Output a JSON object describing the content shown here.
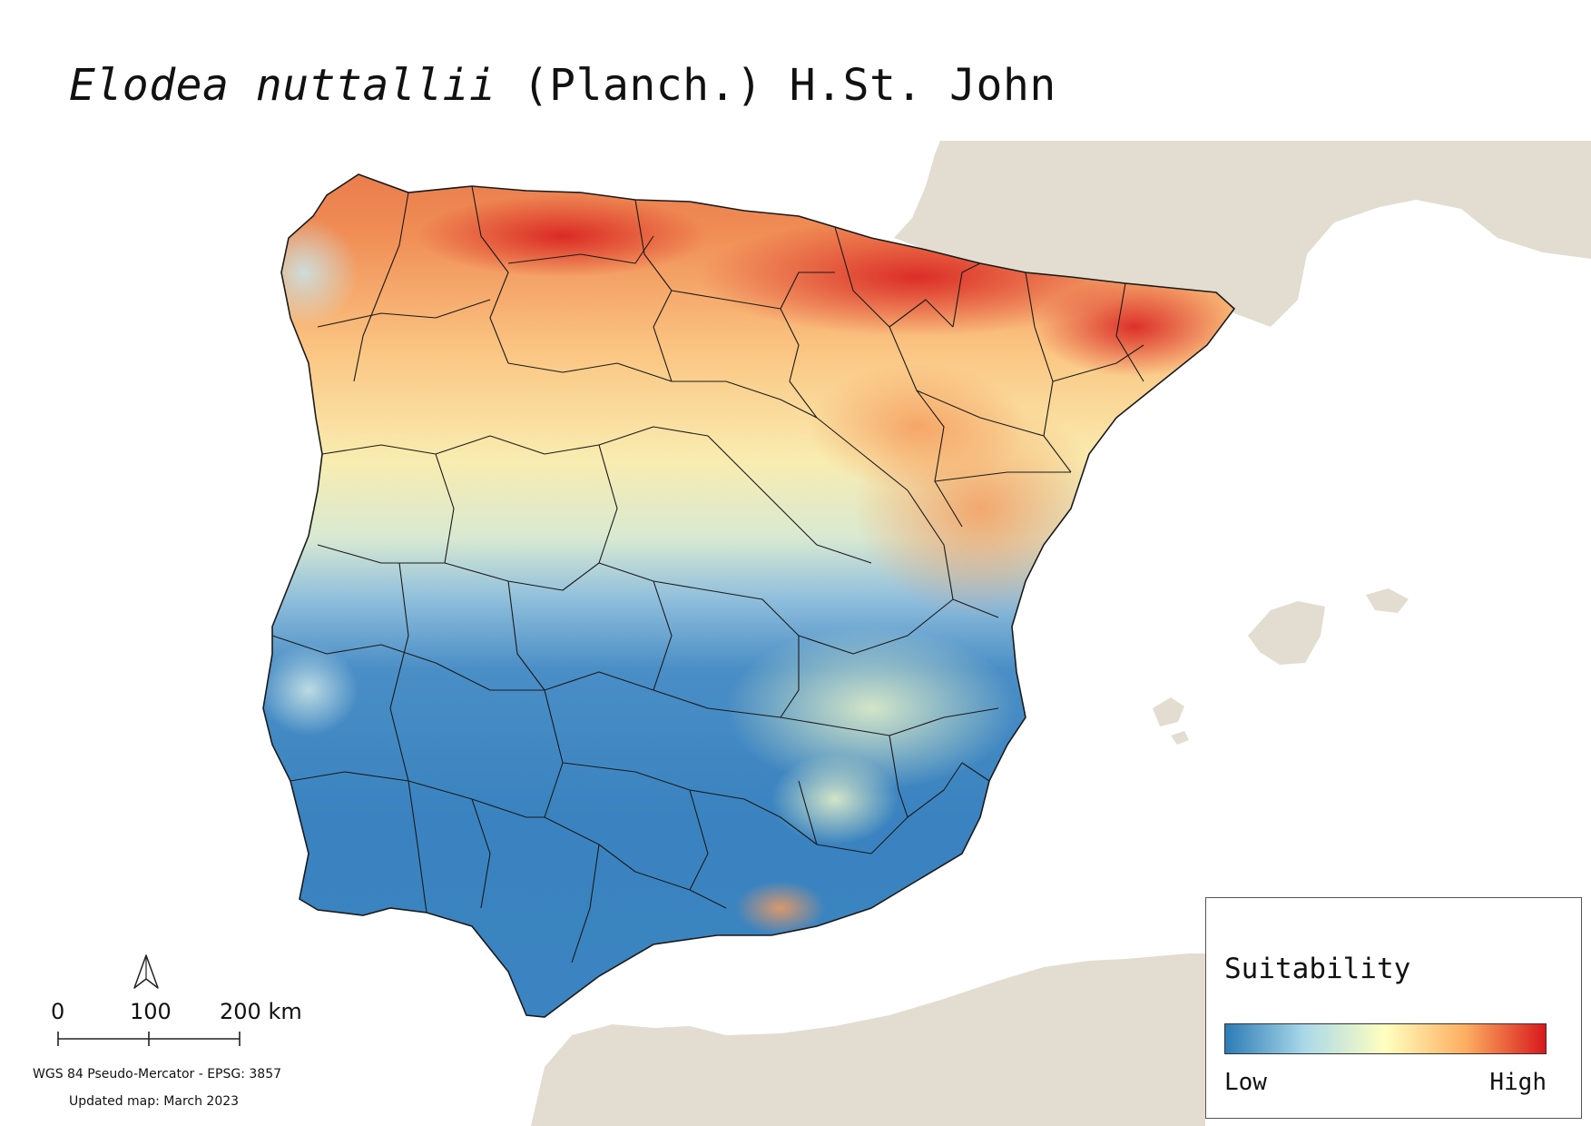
{
  "title": {
    "species": "Elodea nuttallii",
    "authority": "(Planch.) H.St. John"
  },
  "legend": {
    "title": "Suitability",
    "low_label": "Low",
    "high_label": "High",
    "ramp_colors": [
      "#2c7bb6",
      "#abd9e9",
      "#ffffbf",
      "#fdae61",
      "#d7191c"
    ]
  },
  "scale_bar": {
    "labels": [
      "0",
      "100",
      "200 km"
    ]
  },
  "crs": "WGS 84 Pseudo-Mercator  - EPSG: 3857",
  "updated": "Updated map: March 2023",
  "colors": {
    "land_outside": "#e2ddd0",
    "sea": "#ffffff",
    "low": "#2c7bb6",
    "high": "#d7191c",
    "borders": "#1a1a1a"
  },
  "icons": [
    "north-arrow-icon"
  ]
}
